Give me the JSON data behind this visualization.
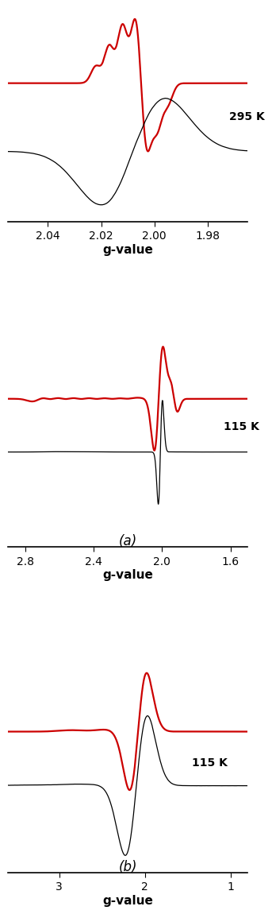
{
  "panel_a_top": {
    "xlim": [
      2.055,
      1.965
    ],
    "xticks": [
      2.04,
      2.02,
      2.0,
      1.98
    ],
    "xlabel": "g-value",
    "temp_label": "295 K"
  },
  "panel_a_bot": {
    "xlim": [
      2.9,
      1.5
    ],
    "xticks": [
      2.8,
      2.4,
      2.0,
      1.6
    ],
    "xlabel": "g-value",
    "temp_label": "115 K"
  },
  "panel_b": {
    "xlim": [
      3.6,
      0.8
    ],
    "xticks": [
      3,
      2,
      1
    ],
    "xlabel": "g-value",
    "temp_label": "115 K"
  },
  "label_a": "(a)",
  "label_b": "(b)",
  "red_color": "#cc0000",
  "black_color": "#000000",
  "bg_color": "#ffffff",
  "linewidth_red": 1.6,
  "linewidth_black": 0.9,
  "fontsize_tick": 10,
  "fontsize_label": 11,
  "fontsize_temp": 10,
  "fontsize_panel": 12
}
